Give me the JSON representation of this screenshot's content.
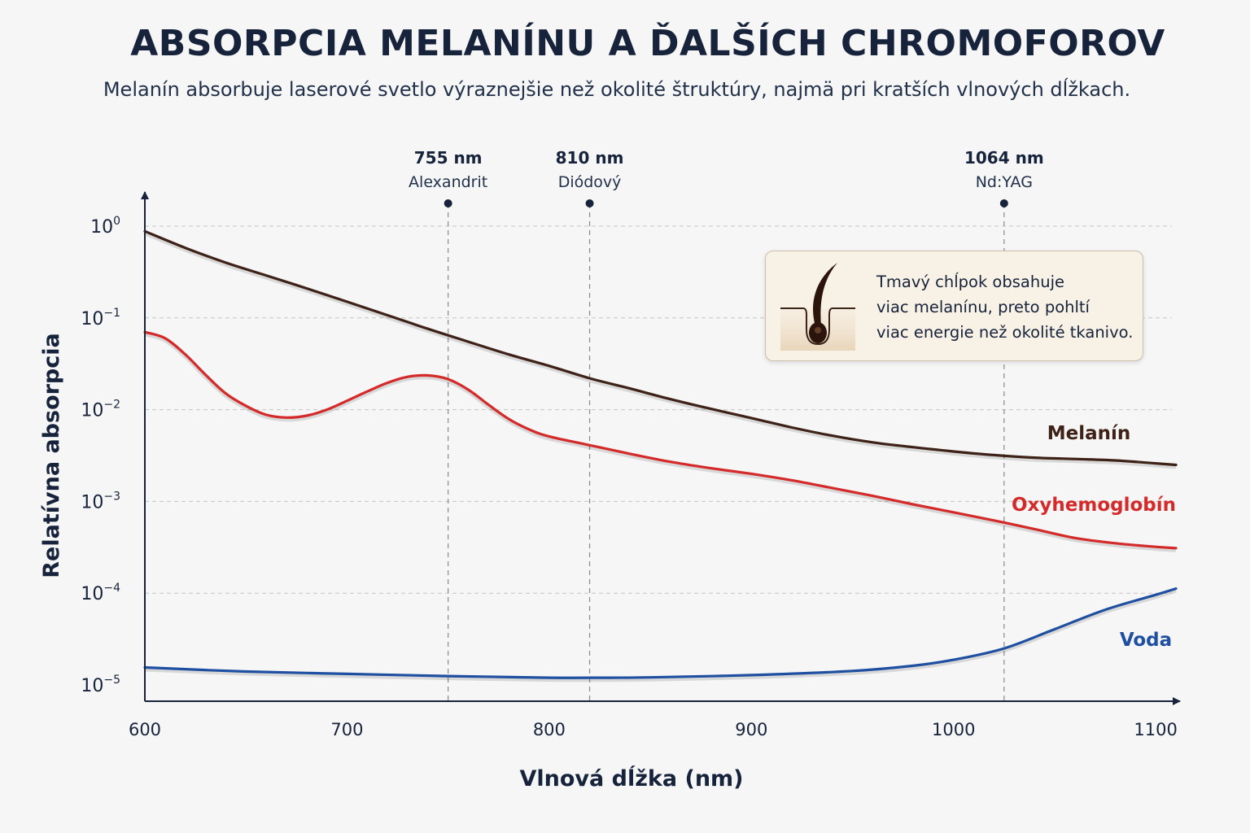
{
  "chart_data": {
    "type": "line",
    "title": "ABSORPCIA MELANÍNU A ĎALŠÍCH CHROMOFOROV",
    "subtitle": "Melanín absorbuje laserové svetlo výraznejšie než okolité štruktúry, najmä pri kratších vlnových dĺžkach.",
    "xlabel": "Vlnová dĺžka (nm)",
    "ylabel": "Relatívna absorpcia",
    "xlim": [
      600,
      1110
    ],
    "ylim": [
      1e-05,
      1
    ],
    "yscale": "log",
    "xticks": [
      600,
      700,
      800,
      900,
      1000,
      1100
    ],
    "yticks": [
      {
        "value": 1,
        "base": "10",
        "exp": "0"
      },
      {
        "value": 0.1,
        "base": "10",
        "exp": "−1"
      },
      {
        "value": 0.01,
        "base": "10",
        "exp": "−2"
      },
      {
        "value": 0.001,
        "base": "10",
        "exp": "−3"
      },
      {
        "value": 0.0001,
        "base": "10",
        "exp": "−4"
      },
      {
        "value": 1e-05,
        "base": "10",
        "exp": "−5"
      }
    ],
    "grid": "horizontal dashed",
    "lasers": [
      {
        "nm_label": "755 nm",
        "name": "Alexandrit",
        "x": 750
      },
      {
        "nm_label": "810 nm",
        "name": "Diódový",
        "x": 820
      },
      {
        "nm_label": "1064 nm",
        "name": "Nd:YAG",
        "x": 1025
      }
    ],
    "series": [
      {
        "name": "Melanín",
        "color": "#3e2218",
        "x": [
          600,
          620,
          640,
          660,
          680,
          700,
          720,
          740,
          760,
          780,
          800,
          820,
          840,
          860,
          880,
          900,
          920,
          940,
          960,
          980,
          1000,
          1020,
          1040,
          1060,
          1080,
          1100,
          1110
        ],
        "y": [
          0.88,
          0.58,
          0.4,
          0.29,
          0.21,
          0.15,
          0.107,
          0.076,
          0.055,
          0.04,
          0.03,
          0.022,
          0.017,
          0.013,
          0.0102,
          0.0081,
          0.0064,
          0.0052,
          0.0044,
          0.0039,
          0.0035,
          0.0032,
          0.003,
          0.0029,
          0.0028,
          0.0026,
          0.0025
        ]
      },
      {
        "name": "Oxyhemoglobín",
        "color": "#d42a2a",
        "x": [
          600,
          610,
          620,
          630,
          640,
          650,
          660,
          670,
          680,
          690,
          700,
          710,
          720,
          730,
          740,
          750,
          760,
          770,
          780,
          790,
          800,
          820,
          840,
          860,
          880,
          900,
          920,
          940,
          960,
          980,
          1000,
          1020,
          1040,
          1060,
          1080,
          1100,
          1110
        ],
        "y": [
          0.07,
          0.06,
          0.04,
          0.024,
          0.015,
          0.011,
          0.0088,
          0.0082,
          0.0086,
          0.01,
          0.0125,
          0.0158,
          0.0196,
          0.0228,
          0.0236,
          0.0215,
          0.0165,
          0.0113,
          0.0079,
          0.0061,
          0.0051,
          0.0041,
          0.0033,
          0.0027,
          0.0023,
          0.002,
          0.0017,
          0.0014,
          0.00115,
          0.00093,
          0.00076,
          0.00062,
          0.0005,
          0.0004,
          0.00035,
          0.00032,
          0.00031
        ]
      },
      {
        "name": "Voda",
        "color": "#1f4fa0",
        "x": [
          600,
          650,
          700,
          750,
          800,
          830,
          850,
          900,
          950,
          980,
          1000,
          1025,
          1050,
          1075,
          1100,
          1110
        ],
        "y": [
          1.55e-05,
          1.4e-05,
          1.32e-05,
          1.25e-05,
          1.2e-05,
          1.2e-05,
          1.21e-05,
          1.28e-05,
          1.42e-05,
          1.62e-05,
          1.88e-05,
          2.5e-05,
          4.05e-05,
          6.6e-05,
          9.6e-05,
          0.000112
        ]
      }
    ]
  },
  "callout": {
    "text_line1": "Tmavý chĺpok obsahuje",
    "text_line2": "viac melanínu, preto pohltí",
    "text_line3": "viac energie než okolité tkanivo.",
    "icon": "hair-follicle-icon"
  }
}
